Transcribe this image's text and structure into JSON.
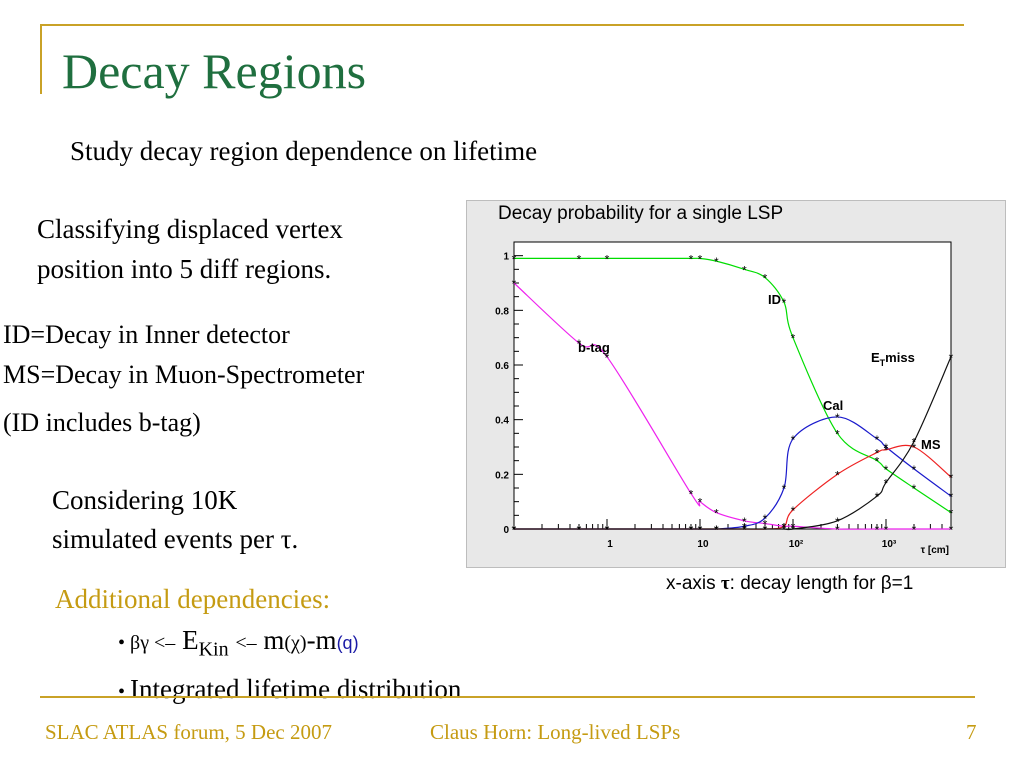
{
  "slide": {
    "title": "Decay Regions",
    "subtitle": "Study decay region dependence on lifetime",
    "classify_line1": "Classifying displaced vertex",
    "classify_line2": "position into 5 diff regions.",
    "def_id": "ID=Decay in Inner detector",
    "def_ms": "MS=Decay in Muon-Spectrometer",
    "includes": "(ID includes b-tag)",
    "considering_line1": "Considering 10K",
    "considering_line2": "simulated events per τ.",
    "additional_title": "Additional dependencies:",
    "bullet1": {
      "betagamma": "βγ <–",
      "ekin_E": "E",
      "ekin_sub": "Kin",
      "arrow2": "<–",
      "m1": "m",
      "m1_paren": "(χ)",
      "dash": "-m",
      "m2_paren": "(q)"
    },
    "bullet2": "Integrated lifetime distribution",
    "caption_prefix": "x-axis ",
    "caption_tau": "τ",
    "caption_rest": ": decay length for ",
    "caption_beta": "β",
    "caption_end": "=1"
  },
  "footer": {
    "left": "SLAC ATLAS forum, 5 Dec 2007",
    "middle": "Claus Horn: Long-lived LSPs",
    "page": "7"
  },
  "colors": {
    "title": "#1f6f3f",
    "accent": "#c59b12",
    "id": "#00dd00",
    "btag": "#ee22ee",
    "cal": "#1a1acc",
    "ms": "#ee2222",
    "etmiss": "#111111"
  },
  "chart_data": {
    "type": "line",
    "title": "Decay probability for a single LSP",
    "xlabel": "τ [cm]",
    "ylabel": "",
    "x_scale": "log",
    "xlim": [
      0.1,
      5000
    ],
    "ylim": [
      0,
      1.05
    ],
    "x_tick_labels": [
      "1",
      "10",
      "10²",
      "10³"
    ],
    "y_tick_labels": [
      "0",
      "0.2",
      "0.4",
      "0.6",
      "0.8",
      "1"
    ],
    "x": [
      0.1,
      0.5,
      1,
      8,
      10,
      15,
      30,
      50,
      80,
      100,
      300,
      800,
      1000,
      2000,
      5000
    ],
    "series": [
      {
        "name": "ID",
        "color": "#00dd00",
        "values": [
          0.99,
          0.99,
          0.99,
          0.99,
          0.99,
          0.98,
          0.95,
          0.92,
          0.83,
          0.7,
          0.35,
          0.25,
          0.22,
          0.15,
          0.06
        ]
      },
      {
        "name": "b-tag",
        "color": "#ee22ee",
        "values": [
          0.9,
          0.68,
          0.63,
          0.13,
          0.1,
          0.06,
          0.03,
          0.02,
          0.01,
          0.01,
          0.0,
          0.0,
          0.0,
          0.0,
          0.0
        ]
      },
      {
        "name": "Cal",
        "color": "#1a1acc",
        "values": [
          0.0,
          0.0,
          0.0,
          0.0,
          0.0,
          0.0,
          0.01,
          0.04,
          0.15,
          0.33,
          0.41,
          0.33,
          0.3,
          0.22,
          0.12
        ]
      },
      {
        "name": "MS",
        "color": "#ee2222",
        "values": [
          0.0,
          0.0,
          0.0,
          0.0,
          0.0,
          0.0,
          0.0,
          0.0,
          0.01,
          0.07,
          0.2,
          0.28,
          0.29,
          0.3,
          0.19
        ]
      },
      {
        "name": "E_Tmiss",
        "color": "#111111",
        "values": [
          0.0,
          0.0,
          0.0,
          0.0,
          0.0,
          0.0,
          0.0,
          0.0,
          0.0,
          0.0,
          0.03,
          0.12,
          0.17,
          0.32,
          0.63
        ]
      }
    ]
  }
}
